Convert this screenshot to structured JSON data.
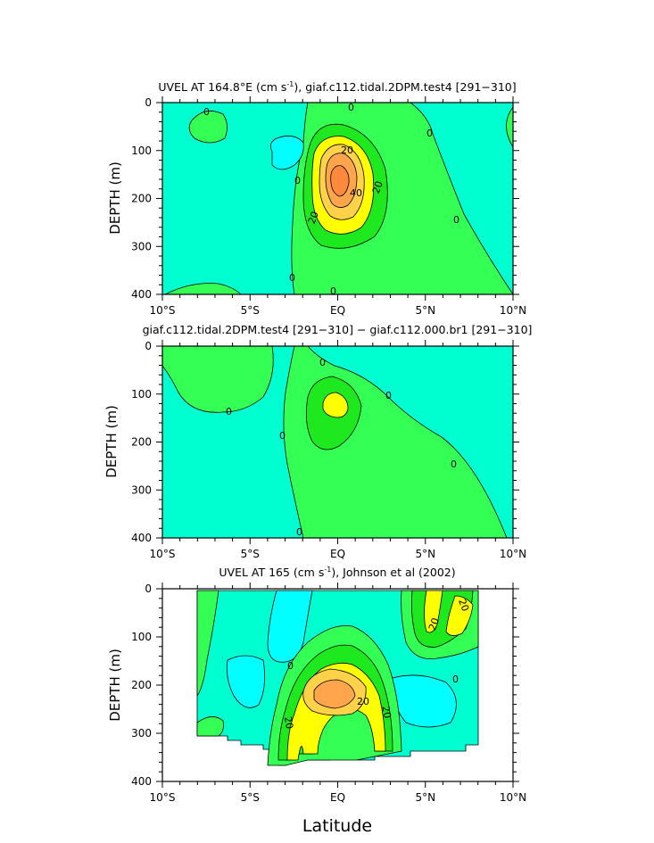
{
  "colors": {
    "cyan": "#00ffff",
    "aqua": "#00ffd0",
    "lightgreen": "#33ff55",
    "green": "#1ee81e",
    "yellow": "#ffff00",
    "gold": "#ffd24a",
    "orange": "#ffa64d",
    "darkorange": "#ff8a3d"
  },
  "chart_data": [
    {
      "type": "contour",
      "title_prefix": "UVEL AT 164.8°E (cm s",
      "title_sup": "-1",
      "title_suffix": "), giaf.c112.tidal.2DPM.test4 [291−310]",
      "xlabel": "",
      "ylabel": "DEPTH (m)",
      "xlim": [
        -10,
        10
      ],
      "ylim": [
        400,
        0
      ],
      "x_ticks": [
        "10°S",
        "5°S",
        "EQ",
        "5°N",
        "10°N"
      ],
      "y_ticks": [
        "0",
        "100",
        "200",
        "300",
        "400"
      ],
      "contour_labels": [
        "0",
        "0",
        "0",
        "0",
        "0",
        "0",
        "0",
        "20",
        "20",
        "40",
        "20"
      ],
      "core": {
        "lat": 0.0,
        "depth": 175,
        "max_speed_approx": 60
      }
    },
    {
      "type": "contour",
      "title": "giaf.c112.tidal.2DPM.test4 [291−310] − giaf.c112.000.br1 [291−310]",
      "xlabel": "",
      "ylabel": "DEPTH (m)",
      "xlim": [
        -10,
        10
      ],
      "ylim": [
        400,
        0
      ],
      "x_ticks": [
        "10°S",
        "5°S",
        "EQ",
        "5°N",
        "10°N"
      ],
      "y_ticks": [
        "0",
        "100",
        "200",
        "300",
        "400"
      ],
      "contour_labels": [
        "0",
        "0",
        "0",
        "0",
        "0",
        "0"
      ]
    },
    {
      "type": "contour",
      "title_prefix": "UVEL AT 165 (cm s",
      "title_sup": "-1",
      "title_suffix": "), Johnson et al (2002)",
      "xlabel": "Latitude",
      "ylabel": "DEPTH (m)",
      "xlim": [
        -10,
        10
      ],
      "ylim": [
        400,
        0
      ],
      "x_ticks": [
        "10°S",
        "5°S",
        "EQ",
        "5°N",
        "10°N"
      ],
      "y_ticks": [
        "0",
        "100",
        "200",
        "300",
        "400"
      ],
      "data_extent": {
        "lat": [
          -8,
          8
        ],
        "depth": [
          10,
          360
        ]
      },
      "contour_labels": [
        "0",
        "20",
        "20",
        "20",
        "20",
        "20",
        "0"
      ],
      "core": {
        "lat": 0.0,
        "depth": 185
      }
    }
  ]
}
